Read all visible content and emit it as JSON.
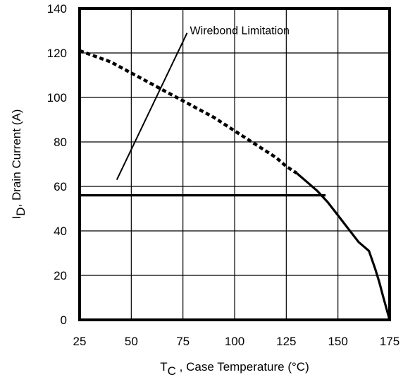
{
  "chart_data": {
    "type": "line",
    "xlabel": {
      "prefix": "T",
      "subscript": "C",
      "suffix": " , Case Temperature (°C)"
    },
    "ylabel": {
      "prefix": "I",
      "subscript": "D",
      "suffix": ",  Drain Current (A)"
    },
    "xlim": [
      25,
      175
    ],
    "ylim": [
      0,
      140
    ],
    "xticks": [
      "25",
      "50",
      "75",
      "100",
      "125",
      "150",
      "175"
    ],
    "yticks": [
      "0",
      "20",
      "40",
      "60",
      "80",
      "100",
      "120",
      "140"
    ],
    "grid": true,
    "series": [
      {
        "style": "dashed",
        "x": [
          25,
          40,
          50,
          60,
          70,
          80,
          90,
          100,
          110,
          120,
          125,
          130
        ],
        "y": [
          121,
          116,
          111,
          106,
          101,
          96,
          91,
          85,
          79,
          73,
          69,
          66
        ]
      },
      {
        "style": "solid",
        "x": [
          130,
          135,
          140,
          145,
          150,
          155,
          160,
          165,
          168,
          170,
          172,
          175
        ],
        "y": [
          66,
          62,
          58,
          53,
          47,
          41,
          35,
          31,
          23,
          17,
          10,
          0
        ]
      },
      {
        "style": "solid",
        "x": [
          25,
          144
        ],
        "y": [
          56,
          56
        ]
      }
    ],
    "annotations": [
      {
        "text": "Wirebond Limitation",
        "arrow_from": [
          43,
          63
        ],
        "arrow_to": [
          77,
          129
        ]
      }
    ]
  }
}
